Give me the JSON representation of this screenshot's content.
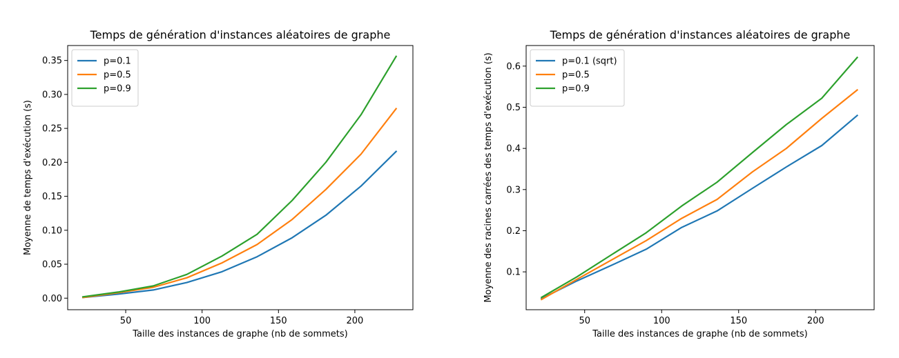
{
  "chart_data": [
    {
      "type": "line",
      "title": "Temps de génération d'instances aléatoires de graphe",
      "xlabel": "Taille des instances de graphe (nb de sommets)",
      "ylabel": "Moyenne de temps d'exécution (s)",
      "xlim": [
        12,
        238
      ],
      "ylim": [
        -0.017,
        0.372
      ],
      "xticks": [
        50,
        100,
        150,
        200
      ],
      "yticks": [
        0.0,
        0.05,
        0.1,
        0.15,
        0.2,
        0.25,
        0.3,
        0.35
      ],
      "ytick_labels": [
        "0.00",
        "0.05",
        "0.10",
        "0.15",
        "0.20",
        "0.25",
        "0.30",
        "0.35"
      ],
      "xtick_labels": [
        "50",
        "100",
        "150",
        "200"
      ],
      "legend_position": "top-left",
      "grid": false,
      "x": [
        22,
        45,
        68,
        90,
        113,
        136,
        159,
        181,
        204,
        227
      ],
      "series": [
        {
          "name": "p=0.1",
          "color": "#1f77b4",
          "values": [
            0.001,
            0.006,
            0.012,
            0.023,
            0.039,
            0.061,
            0.089,
            0.122,
            0.165,
            0.216
          ]
        },
        {
          "name": "p=0.5",
          "color": "#ff7f0e",
          "values": [
            0.001,
            0.008,
            0.016,
            0.03,
            0.052,
            0.079,
            0.116,
            0.16,
            0.212,
            0.279
          ]
        },
        {
          "name": "p=0.9",
          "color": "#2ca02c",
          "values": [
            0.002,
            0.009,
            0.018,
            0.035,
            0.062,
            0.094,
            0.144,
            0.2,
            0.27,
            0.356
          ]
        }
      ]
    },
    {
      "type": "line",
      "title": "Temps de génération d'instances aléatoires de graphe",
      "xlabel": "Taille des instances de graphe (nb de sommets)",
      "ylabel": "Moyenne des racines carrées des temps d'exécution (s)",
      "xlim": [
        12,
        238
      ],
      "ylim": [
        0.008,
        0.65
      ],
      "xticks": [
        50,
        100,
        150,
        200
      ],
      "yticks": [
        0.1,
        0.2,
        0.3,
        0.4,
        0.5,
        0.6
      ],
      "ytick_labels": [
        "0.1",
        "0.2",
        "0.3",
        "0.4",
        "0.5",
        "0.6"
      ],
      "xtick_labels": [
        "50",
        "100",
        "150",
        "200"
      ],
      "legend_position": "top-left",
      "grid": false,
      "x": [
        22,
        45,
        68,
        90,
        113,
        136,
        159,
        181,
        204,
        227
      ],
      "series": [
        {
          "name": "p=0.1 (sqrt)",
          "color": "#1f77b4",
          "values": [
            0.035,
            0.078,
            0.117,
            0.155,
            0.208,
            0.248,
            0.303,
            0.355,
            0.407,
            0.48
          ]
        },
        {
          "name": "p=0.5",
          "color": "#ff7f0e",
          "values": [
            0.033,
            0.082,
            0.13,
            0.176,
            0.23,
            0.276,
            0.343,
            0.4,
            0.473,
            0.542
          ]
        },
        {
          "name": "p=0.9",
          "color": "#2ca02c",
          "values": [
            0.038,
            0.088,
            0.143,
            0.195,
            0.26,
            0.318,
            0.39,
            0.458,
            0.522,
            0.621
          ]
        }
      ]
    }
  ]
}
